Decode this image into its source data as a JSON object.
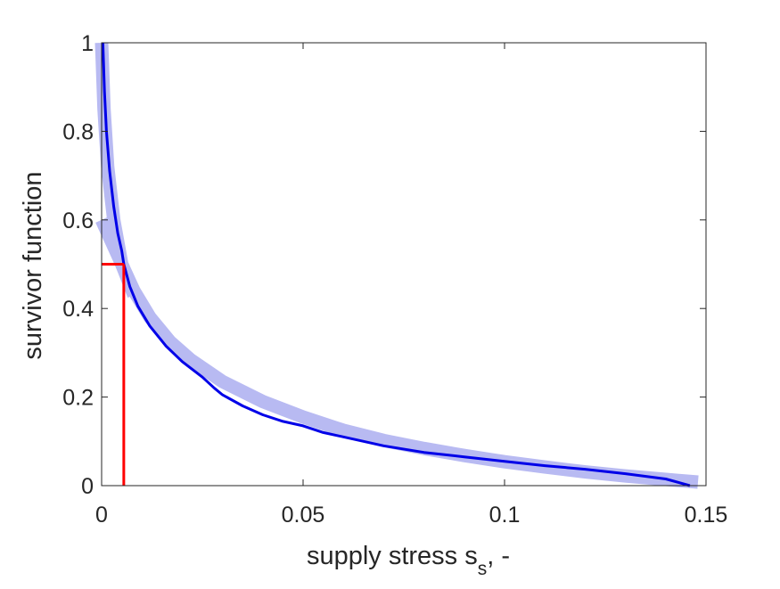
{
  "chart_data": {
    "type": "line",
    "title": "",
    "xlabel": {
      "main": "supply stress s",
      "subscript": "s",
      "suffix": ", -"
    },
    "ylabel": "survivor function",
    "xlim": [
      0,
      0.15
    ],
    "ylim": [
      0,
      1
    ],
    "xticks": [
      0,
      0.05,
      0.1,
      0.15
    ],
    "xtick_labels": [
      "0",
      "0.05",
      "0.1",
      "0.15"
    ],
    "yticks": [
      0,
      0.2,
      0.4,
      0.6,
      0.8,
      1
    ],
    "ytick_labels": [
      "0",
      "0.2",
      "0.4",
      "0.6",
      "0.8",
      "1"
    ],
    "grid": false,
    "box": true,
    "series": [
      {
        "role": "band",
        "color": "#b8baf2",
        "x": [
          0,
          0.0015,
          0.003,
          0.005,
          0.008,
          0.012,
          0.017,
          0.022,
          0.03,
          0.04,
          0.05,
          0.06,
          0.07,
          0.08,
          0.09,
          0.1,
          0.11,
          0.12,
          0.13,
          0.14,
          0.148
        ],
        "values": [
          0.6,
          0.57,
          0.54,
          0.5,
          0.44,
          0.38,
          0.325,
          0.285,
          0.235,
          0.19,
          0.155,
          0.125,
          0.102,
          0.084,
          0.068,
          0.054,
          0.042,
          0.031,
          0.022,
          0.014,
          0.008
        ]
      },
      {
        "role": "band",
        "color": "#b8baf2",
        "x": [
          0,
          0.0006,
          0.0015,
          0.003,
          0.005,
          0.008
        ],
        "values": [
          1.0,
          0.85,
          0.72,
          0.6,
          0.5,
          0.43
        ]
      },
      {
        "role": "line",
        "color": "#0000e8",
        "x": [
          0.0003,
          0.0007,
          0.0012,
          0.002,
          0.003,
          0.004,
          0.005,
          0.0055,
          0.007,
          0.009,
          0.012,
          0.016,
          0.02,
          0.025,
          0.028,
          0.03,
          0.035,
          0.04,
          0.045,
          0.05,
          0.055,
          0.06,
          0.065,
          0.07,
          0.08,
          0.09,
          0.1,
          0.11,
          0.12,
          0.13,
          0.14,
          0.146
        ],
        "values": [
          1.0,
          0.89,
          0.8,
          0.71,
          0.63,
          0.57,
          0.53,
          0.5,
          0.45,
          0.405,
          0.36,
          0.315,
          0.28,
          0.245,
          0.22,
          0.205,
          0.18,
          0.16,
          0.145,
          0.135,
          0.12,
          0.11,
          0.1,
          0.09,
          0.075,
          0.065,
          0.055,
          0.045,
          0.037,
          0.027,
          0.015,
          0.0
        ]
      }
    ],
    "median_marker": {
      "color": "#ff0000",
      "x": 0.0055,
      "y": 0.5
    }
  }
}
